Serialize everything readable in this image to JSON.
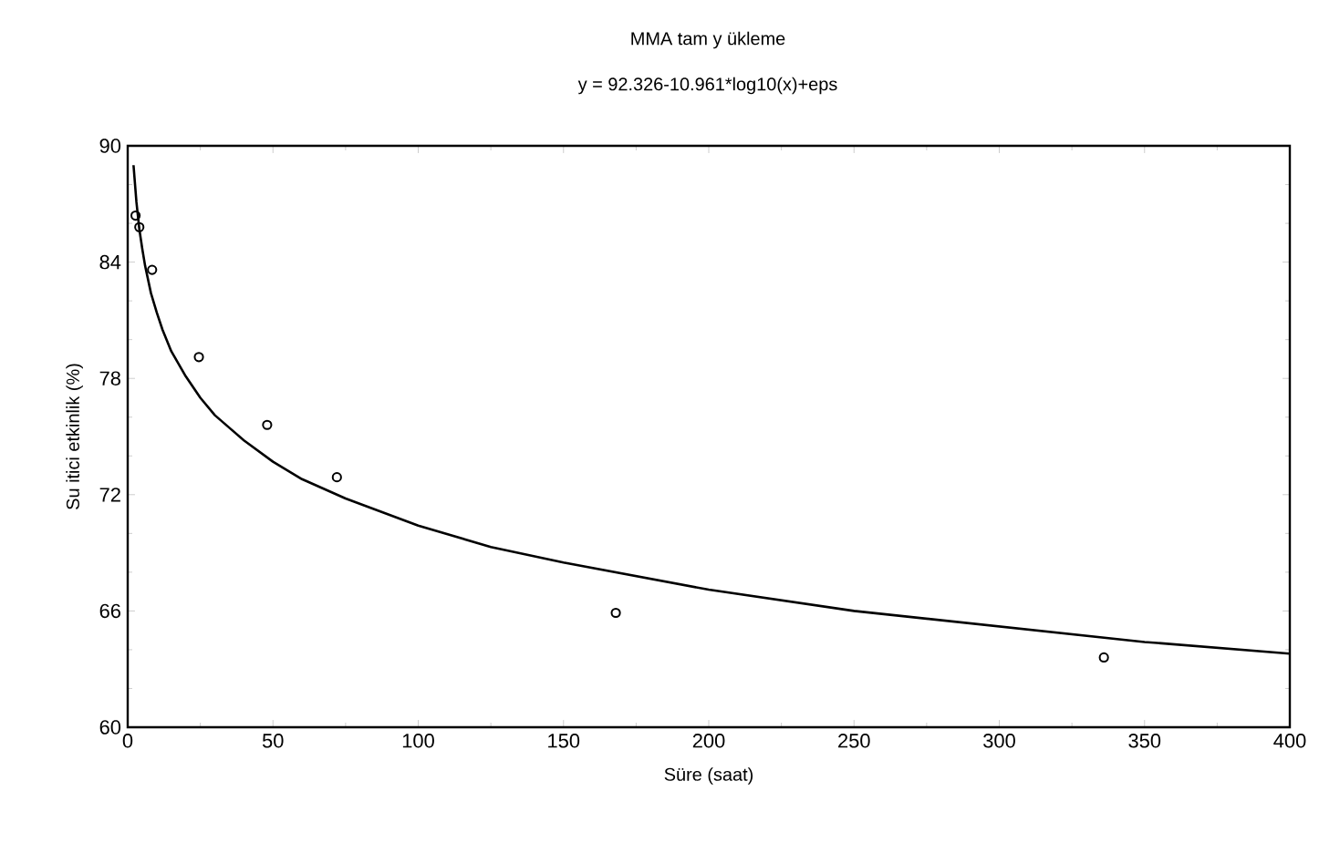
{
  "chart_data": {
    "type": "scatter",
    "title": "MMA tam y ükleme",
    "subtitle": "y  = 92.326-10.961*log10(x)+eps",
    "xlabel": "Süre (saat)",
    "ylabel": "Su itici etkinlik (%)",
    "xlim": [
      0,
      400
    ],
    "xticks": [
      0,
      50,
      100,
      150,
      200,
      250,
      300,
      350,
      400
    ],
    "ylim": [
      60,
      90
    ],
    "yticks": [
      60,
      66,
      72,
      78,
      84,
      90
    ],
    "grid": false,
    "series": [
      {
        "color": "#000000",
        "marker": "circle",
        "x": [
          2.7,
          4,
          8.4,
          24.5,
          48,
          72,
          168,
          336
        ],
        "values": [
          86.4,
          85.8,
          83.6,
          79.1,
          75.6,
          72.9,
          65.9,
          63.6
        ]
      },
      {
        "type": "line",
        "color": "#000000",
        "marker": "none",
        "line_style": "solid",
        "x": [
          2,
          3,
          4,
          5,
          6,
          8,
          10,
          12,
          15,
          20,
          25,
          30,
          40,
          50,
          60,
          75,
          100,
          125,
          150,
          200,
          250,
          300,
          350,
          400
        ],
        "values": [
          89.0,
          87.1,
          85.7,
          84.7,
          83.8,
          82.4,
          81.4,
          80.5,
          79.4,
          78.1,
          77.0,
          76.1,
          74.8,
          73.7,
          72.8,
          71.8,
          70.4,
          69.3,
          68.5,
          67.1,
          66.0,
          65.2,
          64.4,
          63.8
        ]
      }
    ]
  }
}
